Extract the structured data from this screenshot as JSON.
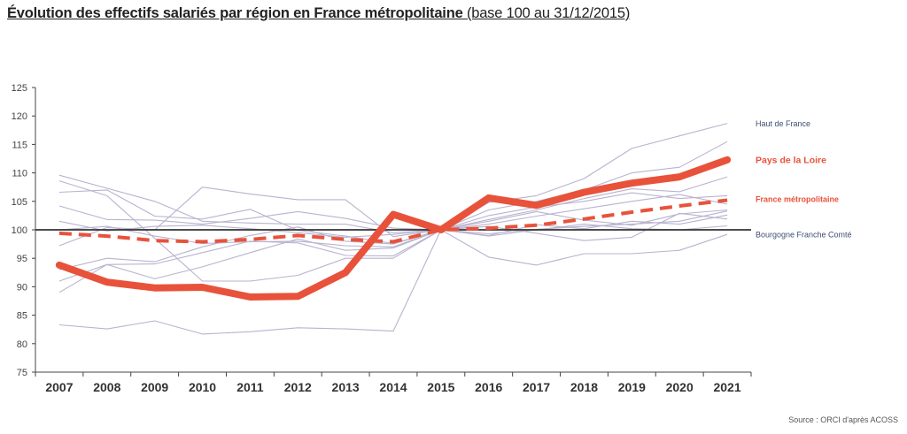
{
  "title": {
    "main": "Évolution des effectifs salariés par région en France métropolitaine",
    "sub": "(base 100 au 31/12/2015)"
  },
  "source": "Source : ORCI d'après ACOSS",
  "colors": {
    "highlight": "#e8523b",
    "background": "#b8b3cf",
    "reference": "#333333"
  },
  "chart_data": {
    "type": "line",
    "x": [
      "2007",
      "2008",
      "2009",
      "2010",
      "2011",
      "2012",
      "2013",
      "2014",
      "2015",
      "2016",
      "2017",
      "2018",
      "2019",
      "2020",
      "2021"
    ],
    "ylim": [
      75,
      125
    ],
    "yticks": [
      75,
      80,
      85,
      90,
      95,
      100,
      105,
      110,
      115,
      120,
      125
    ],
    "grid": false,
    "reference_line": 100,
    "series": [
      {
        "name": "Pays de la Loire",
        "style": "thick-solid",
        "values": [
          93.8,
          90.8,
          89.8,
          89.9,
          88.2,
          88.3,
          92.5,
          102.7,
          100,
          105.6,
          104.3,
          106.6,
          108.2,
          109.3,
          112.3
        ]
      },
      {
        "name": "France métropolitaine",
        "style": "dashed",
        "values": [
          99.4,
          98.9,
          98.1,
          97.9,
          98.3,
          99.0,
          98.3,
          97.9,
          100,
          100.3,
          100.8,
          101.9,
          103.1,
          104.2,
          105.2
        ]
      },
      {
        "name": "Haut de France",
        "style": "thin",
        "values": [
          109.6,
          107.3,
          105.0,
          101.5,
          101.2,
          101.0,
          101.0,
          99.5,
          100,
          104.8,
          106.0,
          109.0,
          114.3,
          116.5,
          118.7
        ]
      },
      {
        "name": "Bourgogne Franche Comté",
        "style": "thin",
        "values": [
          83.3,
          82.6,
          84.0,
          81.7,
          82.1,
          82.8,
          82.6,
          82.2,
          100,
          95.2,
          93.8,
          95.8,
          95.8,
          96.4,
          99.2
        ]
      },
      {
        "name": "",
        "style": "thin",
        "values": [
          89.0,
          93.9,
          91.4,
          93.5,
          96.0,
          98.4,
          96.4,
          96.8,
          100,
          103.5,
          105.0,
          107.0,
          110.0,
          111.0,
          115.5
        ]
      },
      {
        "name": "",
        "style": "thin",
        "values": [
          93.0,
          95.0,
          94.4,
          97.0,
          99.0,
          100.5,
          98.0,
          97.5,
          100,
          101.8,
          103.5,
          105.5,
          107.2,
          106.7,
          109.3
        ]
      },
      {
        "name": "",
        "style": "thin",
        "values": [
          106.6,
          107.0,
          102.4,
          101.9,
          103.6,
          99.9,
          98.9,
          97.6,
          100,
          102.5,
          104.0,
          105.0,
          106.5,
          105.5,
          106.0
        ]
      },
      {
        "name": "",
        "style": "thin",
        "values": [
          104.2,
          101.8,
          101.7,
          101.0,
          102.0,
          103.2,
          102.0,
          100.3,
          100,
          101.0,
          102.4,
          103.7,
          105.0,
          106.2,
          104.5
        ]
      },
      {
        "name": "",
        "style": "thin",
        "values": [
          97.2,
          100.4,
          100.0,
          107.5,
          106.3,
          105.3,
          105.3,
          98.8,
          100,
          101.5,
          103.2,
          101.7,
          100.8,
          102.8,
          103.5
        ]
      },
      {
        "name": "",
        "style": "thin",
        "values": [
          101.5,
          99.8,
          100.6,
          100.8,
          100.2,
          99.5,
          98.7,
          99.2,
          100,
          99.0,
          100.9,
          100.2,
          101.5,
          101.0,
          102.6
        ]
      },
      {
        "name": "",
        "style": "thin",
        "values": [
          100.0,
          100.6,
          98.9,
          97.6,
          97.9,
          98.0,
          97.2,
          97.0,
          100,
          100.6,
          99.4,
          98.1,
          98.7,
          102.9,
          101.9
        ]
      },
      {
        "name": "",
        "style": "thin",
        "values": [
          91.0,
          93.9,
          94.0,
          96.0,
          98.0,
          97.7,
          95.5,
          95.4,
          100,
          99.3,
          100.1,
          100.6,
          101.0,
          101.5,
          103.3
        ]
      },
      {
        "name": "",
        "style": "thin",
        "values": [
          108.6,
          106.0,
          98.5,
          91.0,
          91.0,
          92.0,
          95.0,
          95.0,
          100,
          98.9,
          100.0,
          101.0,
          100.2,
          100.0,
          100.7
        ]
      }
    ],
    "labels": [
      "Haut de France",
      "Pays de la Loire",
      "France métropolitaine",
      "Bourgogne Franche Comté"
    ]
  }
}
